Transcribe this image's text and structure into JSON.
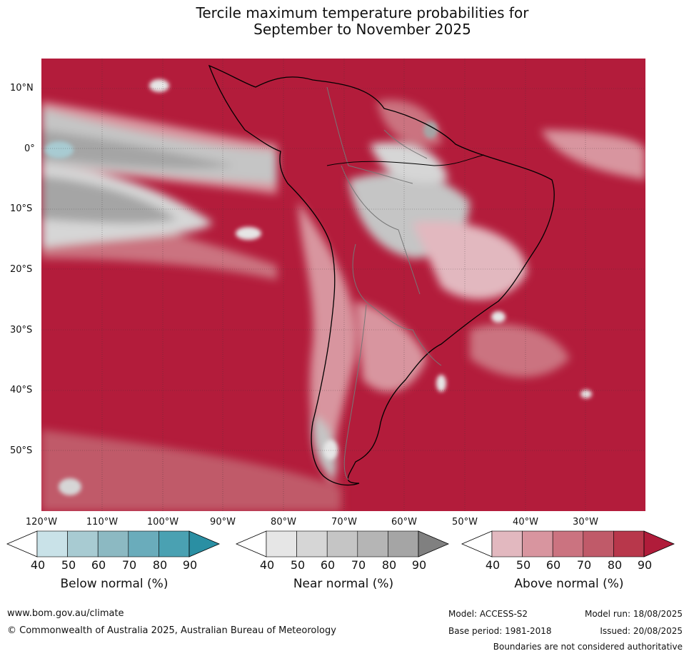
{
  "title": {
    "line1": "Tercile maximum temperature probabilities for",
    "line2": "September to November 2025"
  },
  "axes": {
    "lat_labels": [
      "10°N",
      "0°",
      "10°S",
      "20°S",
      "30°S",
      "40°S",
      "50°S"
    ],
    "lon_labels": [
      "120°W",
      "110°W",
      "100°W",
      "90°W",
      "80°W",
      "70°W",
      "60°W",
      "50°W",
      "40°W",
      "30°W"
    ]
  },
  "legend": {
    "below": {
      "title": "Below normal (%)",
      "ticks": [
        "40",
        "50",
        "60",
        "70",
        "80",
        "90"
      ],
      "colors": [
        "#ffffff",
        "#c9e2e8",
        "#a8cbd2",
        "#8cb9c2",
        "#6aacbb",
        "#4aa1b2",
        "#2a8fa3"
      ]
    },
    "near": {
      "title": "Near normal (%)",
      "ticks": [
        "40",
        "50",
        "60",
        "70",
        "80",
        "90"
      ],
      "colors": [
        "#ffffff",
        "#e6e6e6",
        "#d6d6d6",
        "#c5c5c5",
        "#b5b5b5",
        "#a5a5a5",
        "#808080"
      ]
    },
    "above": {
      "title": "Above normal (%)",
      "ticks": [
        "40",
        "50",
        "60",
        "70",
        "80",
        "90"
      ],
      "colors": [
        "#ffffff",
        "#e2b8bf",
        "#d8959f",
        "#cb7380",
        "#c05a69",
        "#b8374b",
        "#b01c3a"
      ]
    }
  },
  "footer": {
    "url": "www.bom.gov.au/climate",
    "copyright": "© Commonwealth of Australia 2025, Australian Bureau of Meteorology",
    "model": "Model: ACCESS-S2",
    "base_period": "Base period: 1981-2018",
    "model_run": "Model run: 18/08/2025",
    "issued": "Issued: 20/08/2025",
    "disclaimer": "Boundaries are not considered authoritative"
  }
}
